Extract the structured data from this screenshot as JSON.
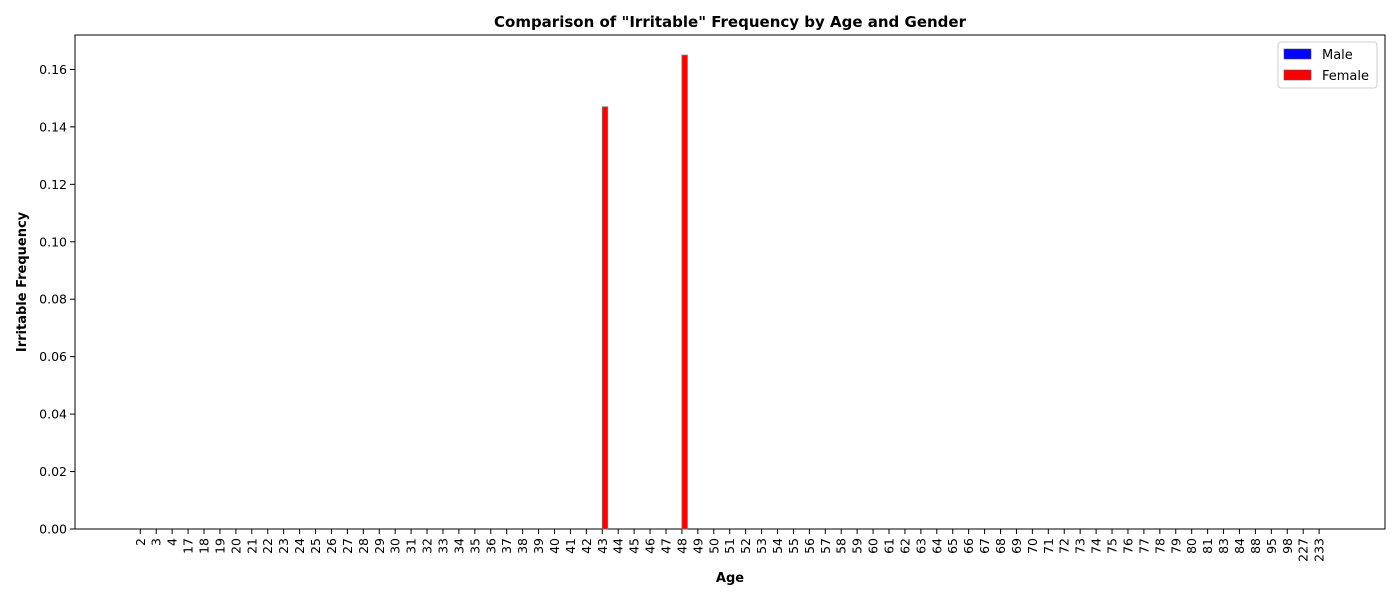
{
  "chart_data": {
    "type": "bar",
    "title": "Comparison of \"Irritable\" Frequency by Age and Gender",
    "xlabel": "Age",
    "ylabel": "Irritable Frequency",
    "ylim": [
      0,
      0.172
    ],
    "yticks": [
      0.0,
      0.02,
      0.04,
      0.06,
      0.08,
      0.1,
      0.12,
      0.14,
      0.16
    ],
    "ytick_labels": [
      "0.00",
      "0.02",
      "0.04",
      "0.06",
      "0.08",
      "0.10",
      "0.12",
      "0.14",
      "0.16"
    ],
    "legend_position": "top-right",
    "grid": false,
    "categories": [
      "2",
      "3",
      "4",
      "17",
      "18",
      "19",
      "20",
      "21",
      "22",
      "23",
      "24",
      "25",
      "26",
      "27",
      "28",
      "29",
      "30",
      "31",
      "32",
      "33",
      "34",
      "35",
      "36",
      "37",
      "38",
      "39",
      "40",
      "41",
      "42",
      "43",
      "44",
      "45",
      "46",
      "47",
      "48",
      "49",
      "50",
      "51",
      "52",
      "53",
      "54",
      "55",
      "56",
      "57",
      "58",
      "59",
      "60",
      "61",
      "62",
      "63",
      "64",
      "65",
      "66",
      "67",
      "68",
      "69",
      "70",
      "71",
      "72",
      "73",
      "74",
      "75",
      "76",
      "77",
      "78",
      "79",
      "80",
      "81",
      "83",
      "84",
      "88",
      "95",
      "98",
      "227",
      "233"
    ],
    "series": [
      {
        "name": "Male",
        "color": "#0000ff",
        "values": [
          0,
          0,
          0,
          0,
          0,
          0,
          0,
          0,
          0,
          0,
          0,
          0,
          0,
          0,
          0,
          0,
          0,
          0,
          0,
          0,
          0,
          0,
          0,
          0,
          0,
          0,
          0,
          0,
          0,
          0,
          0,
          0,
          0,
          0,
          0,
          0,
          0,
          0,
          0,
          0,
          0,
          0,
          0,
          0,
          0,
          0,
          0,
          0,
          0,
          0,
          0,
          0,
          0,
          0,
          0,
          0,
          0,
          0,
          0,
          0,
          0,
          0,
          0,
          0,
          0,
          0,
          0,
          0,
          0,
          0,
          0,
          0,
          0,
          0,
          0
        ]
      },
      {
        "name": "Female",
        "color": "#ff0000",
        "values": [
          0,
          0,
          0,
          0,
          0,
          0,
          0,
          0,
          0,
          0,
          0,
          0,
          0,
          0,
          0,
          0,
          0,
          0,
          0,
          0,
          0,
          0,
          0,
          0,
          0,
          0,
          0,
          0,
          0,
          0.147,
          0,
          0,
          0,
          0,
          0.165,
          0,
          0,
          0,
          0,
          0,
          0,
          0,
          0,
          0,
          0,
          0,
          0,
          0,
          0,
          0,
          0,
          0,
          0,
          0,
          0,
          0,
          0,
          0,
          0,
          0,
          0,
          0,
          0,
          0,
          0,
          0,
          0,
          0,
          0,
          0,
          0,
          0,
          0,
          0,
          0
        ]
      }
    ]
  }
}
